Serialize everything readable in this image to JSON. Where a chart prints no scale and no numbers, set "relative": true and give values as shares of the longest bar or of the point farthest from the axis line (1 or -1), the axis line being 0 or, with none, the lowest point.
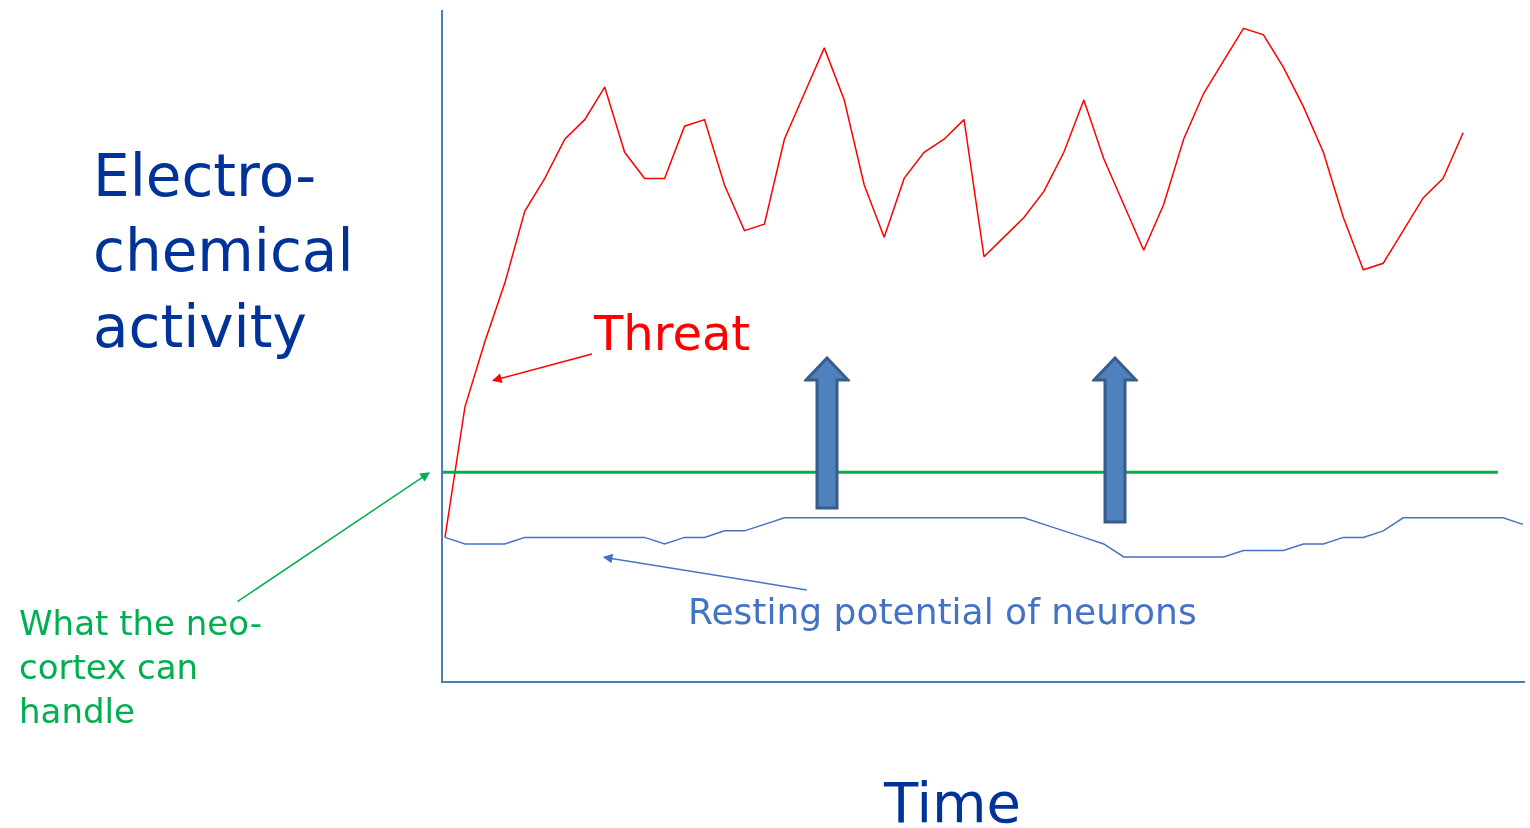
{
  "chart_data": {
    "type": "line",
    "relative": true,
    "xlabel": "Time",
    "ylabel": "Electro-chemical activity",
    "categories": [
      null,
      null,
      null,
      null,
      null,
      null,
      null,
      null,
      null,
      null,
      null,
      null,
      null,
      null,
      null,
      null,
      null,
      null,
      null,
      null,
      null,
      null,
      null,
      null,
      null,
      null,
      null,
      null,
      null,
      null,
      null,
      null,
      null,
      null,
      null,
      null,
      null,
      null,
      null,
      null,
      null,
      null,
      null,
      null,
      null,
      null,
      null,
      null,
      null,
      null,
      null,
      null,
      null,
      null,
      null
    ],
    "series": [
      {
        "name": "Threat",
        "color": "#ff0000",
        "values": [
          0.22,
          0.42,
          0.52,
          0.61,
          0.72,
          0.77,
          0.83,
          0.86,
          0.91,
          0.81,
          0.77,
          0.77,
          0.85,
          0.86,
          0.76,
          0.69,
          0.7,
          0.83,
          0.9,
          0.97,
          0.89,
          0.76,
          0.68,
          0.77,
          0.81,
          0.83,
          0.86,
          0.65,
          0.68,
          0.71,
          0.75,
          0.81,
          0.89,
          0.8,
          0.73,
          0.66,
          0.73,
          0.83,
          0.9,
          0.95,
          1.0,
          0.99,
          0.94,
          0.88,
          0.81,
          0.71,
          0.63,
          0.64,
          0.69,
          0.74,
          0.77,
          0.84,
          null,
          null,
          null
        ]
      },
      {
        "name": "Resting potential of neurons",
        "color": "#4472c4",
        "values": [
          0.22,
          0.21,
          0.21,
          0.21,
          0.22,
          0.22,
          0.22,
          0.22,
          0.22,
          0.22,
          0.22,
          0.21,
          0.22,
          0.22,
          0.23,
          0.23,
          0.24,
          0.25,
          0.25,
          0.25,
          0.25,
          0.25,
          0.25,
          0.25,
          0.25,
          0.25,
          0.25,
          0.25,
          0.25,
          0.25,
          0.24,
          0.23,
          0.22,
          0.21,
          0.19,
          0.19,
          0.19,
          0.19,
          0.19,
          0.19,
          0.2,
          0.2,
          0.2,
          0.21,
          0.21,
          0.22,
          0.22,
          0.23,
          0.25,
          0.25,
          0.25,
          0.25,
          0.25,
          0.25,
          0.24
        ]
      }
    ],
    "ref_lines": [
      {
        "axis": "y",
        "value": 0.32,
        "label": "What the neo-cortex can handle",
        "color": "#00b050"
      }
    ]
  }
}
